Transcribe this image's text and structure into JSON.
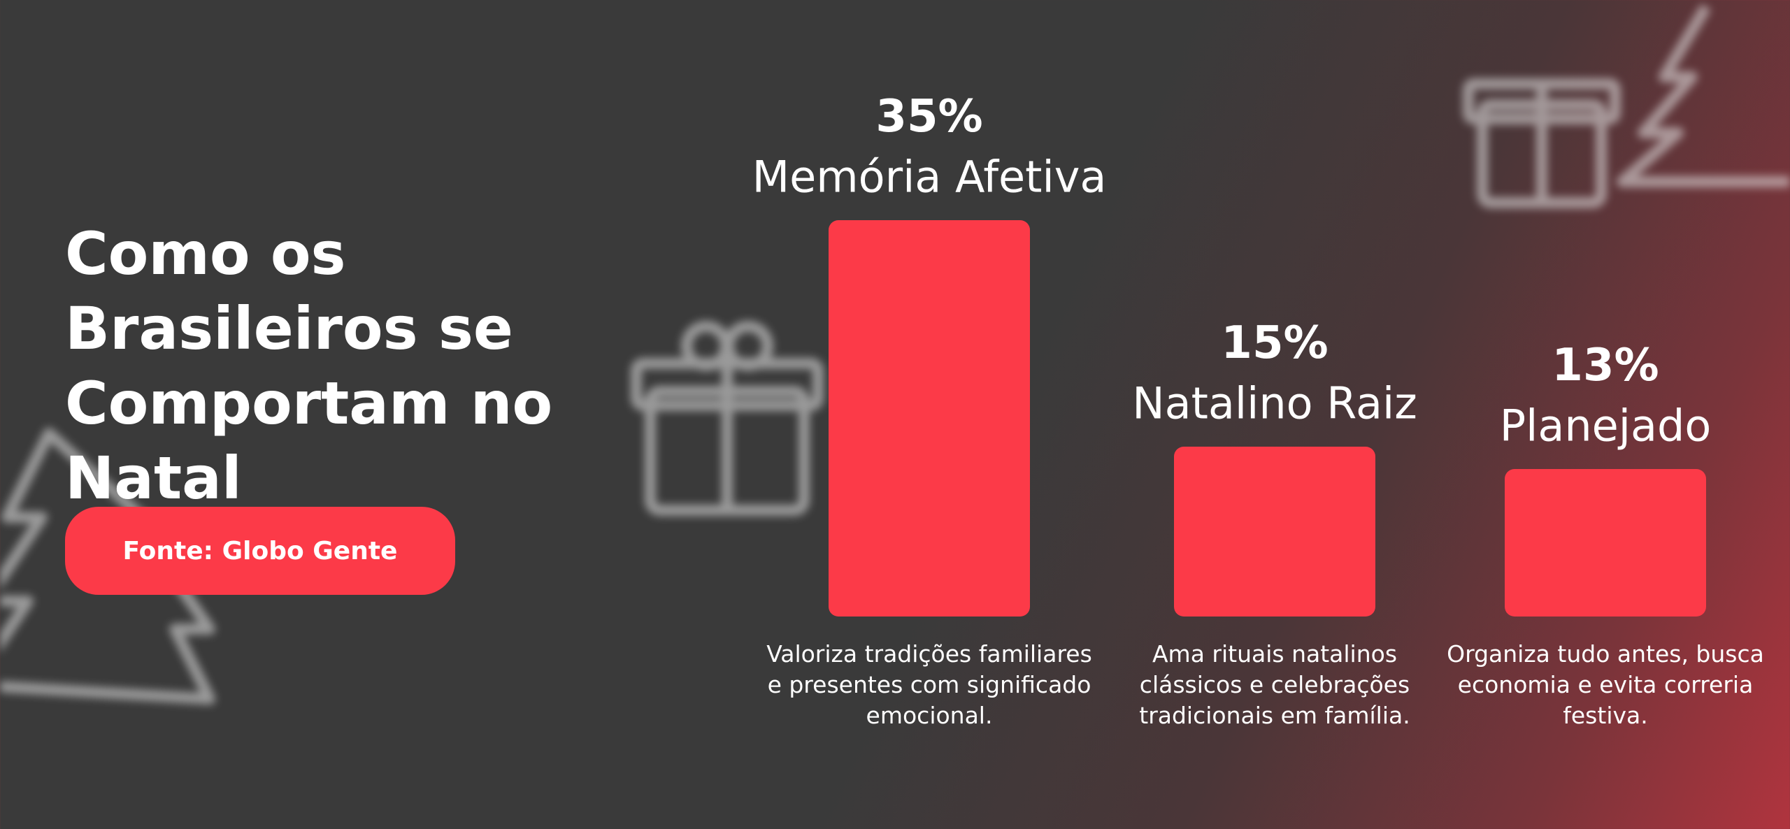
{
  "chart_data": {
    "type": "bar",
    "title": "Como os Brasileiros se Comportam no Natal",
    "source": "Fonte: Globo Gente",
    "categories": [
      "Memória Afetiva",
      "Natalino Raiz",
      "Planejado"
    ],
    "values": [
      35,
      15,
      13
    ],
    "value_labels": [
      "35%",
      "15%",
      "13%"
    ],
    "descriptions": [
      "Valoriza tradições familiares e presentes com significado emocional.",
      "Ama rituais natalinos clássicos e celebrações tradicionais em família.",
      "Organiza tudo antes, busca economia e evita correria festiva."
    ],
    "color": "#fc3a48"
  }
}
